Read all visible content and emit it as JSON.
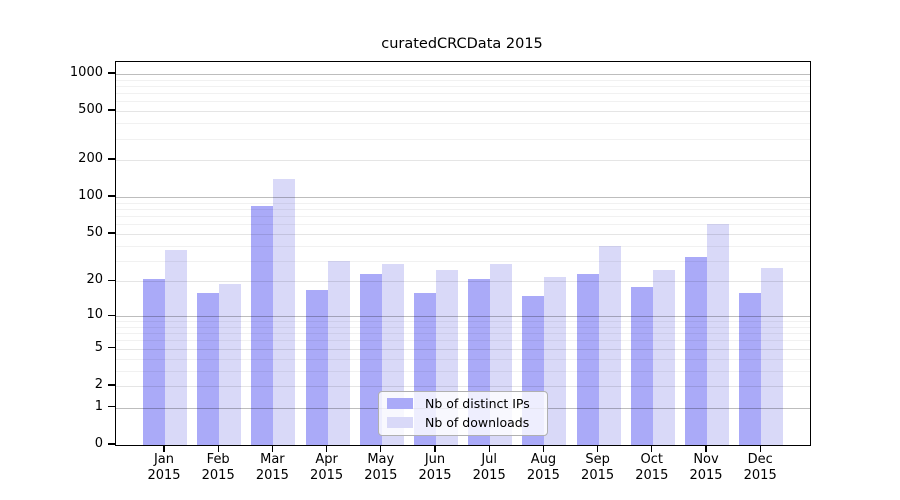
{
  "figure": {
    "title": "curatedCRCData 2015",
    "background_color": "#ffffff"
  },
  "chart_data": {
    "type": "bar",
    "title": "curatedCRCData 2015",
    "xlabel": "",
    "ylabel": "",
    "year": "2015",
    "months": [
      "Jan",
      "Feb",
      "Mar",
      "Apr",
      "May",
      "Jun",
      "Jul",
      "Aug",
      "Sep",
      "Oct",
      "Nov",
      "Dec"
    ],
    "categories": [
      "Jan 2015",
      "Feb 2015",
      "Mar 2015",
      "Apr 2015",
      "May 2015",
      "Jun 2015",
      "Jul 2015",
      "Aug 2015",
      "Sep 2015",
      "Oct 2015",
      "Nov 2015",
      "Dec 2015"
    ],
    "series": [
      {
        "name": "Nb of distinct IPs",
        "color": "#aaaaf8",
        "values": [
          21,
          16,
          85,
          17,
          23,
          16,
          21,
          15,
          23,
          18,
          32,
          16
        ]
      },
      {
        "name": "Nb of downloads",
        "color": "#d9d9f8",
        "values": [
          37,
          19,
          140,
          30,
          28,
          25,
          28,
          22,
          40,
          25,
          60,
          26
        ]
      }
    ],
    "yscale": "log1p",
    "ylim": [
      0,
      1250
    ],
    "y_ticks": [
      0,
      1,
      2,
      5,
      10,
      20,
      50,
      100,
      200,
      500,
      1000
    ],
    "y_tick_labels": [
      "0",
      "1",
      "2",
      "5",
      "10",
      "20",
      "50",
      "100",
      "200",
      "500",
      "1000"
    ],
    "y_minor_ticks": [
      3,
      4,
      6,
      7,
      8,
      9,
      30,
      40,
      60,
      70,
      80,
      90,
      300,
      400,
      600,
      700,
      800,
      900
    ],
    "grid": true,
    "legend_position": "lower center, inside plot"
  }
}
